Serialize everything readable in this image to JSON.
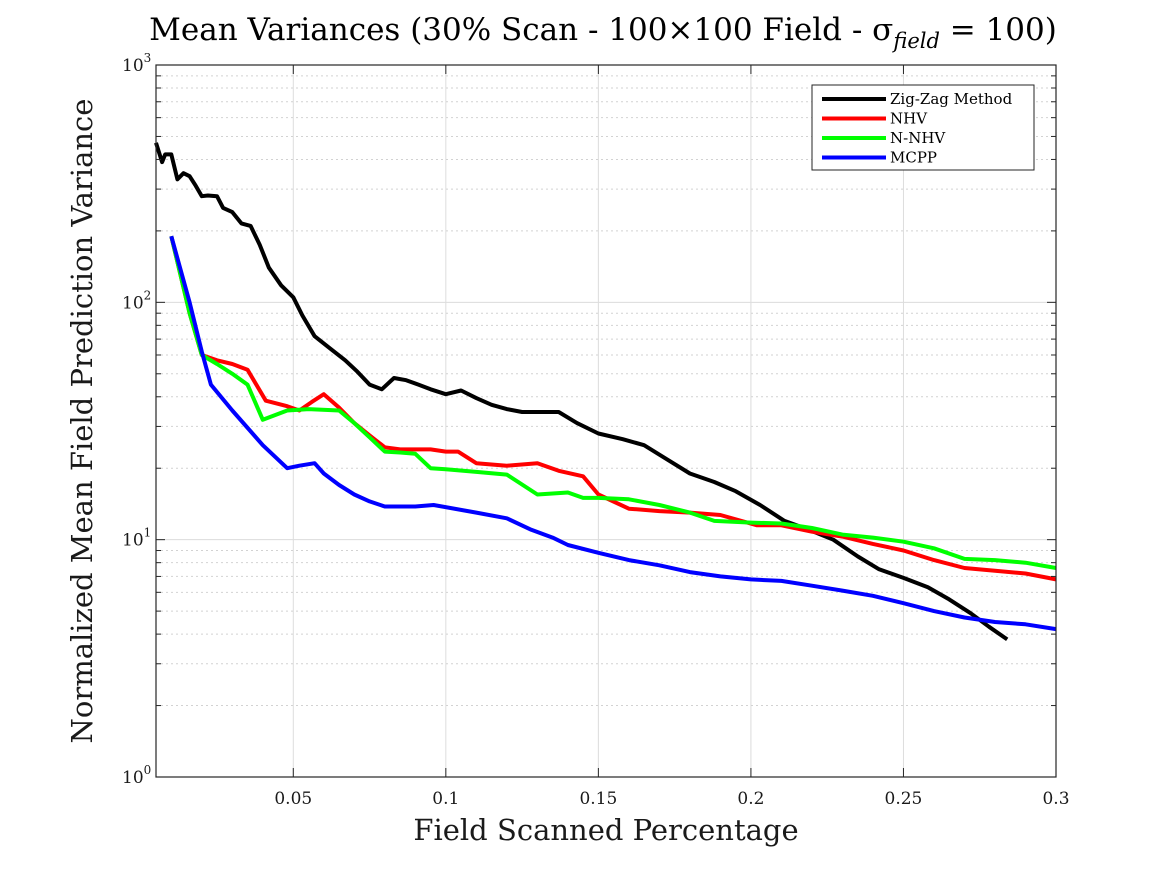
{
  "chart_data": {
    "type": "line",
    "title": "Mean Variances (30% Scan - 100×100 Field - σ",
    "title_sub": "field",
    "title_tail": " = 100)",
    "xlabel": "Field Scanned Percentage",
    "ylabel": "Normalized Mean Field Prediction Variance",
    "xlim": [
      0.005,
      0.3
    ],
    "ylim": [
      1,
      1000
    ],
    "yscale": "log",
    "grid": true,
    "legend_position": "top-right",
    "x_ticks": [
      {
        "value": 0.05,
        "label": "0.05"
      },
      {
        "value": 0.1,
        "label": "0.1"
      },
      {
        "value": 0.15,
        "label": "0.15"
      },
      {
        "value": 0.2,
        "label": "0.2"
      },
      {
        "value": 0.25,
        "label": "0.25"
      },
      {
        "value": 0.3,
        "label": "0.3"
      }
    ],
    "y_ticks": [
      {
        "value": 1,
        "base": "10",
        "exp": "0"
      },
      {
        "value": 10,
        "base": "10",
        "exp": "1"
      },
      {
        "value": 100,
        "base": "10",
        "exp": "2"
      },
      {
        "value": 1000,
        "base": "10",
        "exp": "3"
      }
    ],
    "series": [
      {
        "name": "Zig-Zag Method",
        "color": "#000000",
        "points": [
          [
            0.005,
            470
          ],
          [
            0.007,
            390
          ],
          [
            0.008,
            420
          ],
          [
            0.01,
            420
          ],
          [
            0.012,
            330
          ],
          [
            0.014,
            350
          ],
          [
            0.016,
            340
          ],
          [
            0.018,
            310
          ],
          [
            0.02,
            280
          ],
          [
            0.022,
            282
          ],
          [
            0.025,
            280
          ],
          [
            0.027,
            250
          ],
          [
            0.03,
            240
          ],
          [
            0.033,
            215
          ],
          [
            0.036,
            210
          ],
          [
            0.039,
            175
          ],
          [
            0.042,
            140
          ],
          [
            0.046,
            118
          ],
          [
            0.05,
            105
          ],
          [
            0.053,
            88
          ],
          [
            0.057,
            72
          ],
          [
            0.062,
            64
          ],
          [
            0.067,
            57
          ],
          [
            0.071,
            51
          ],
          [
            0.075,
            45
          ],
          [
            0.079,
            43
          ],
          [
            0.083,
            48
          ],
          [
            0.087,
            47
          ],
          [
            0.091,
            45
          ],
          [
            0.095,
            43
          ],
          [
            0.1,
            41
          ],
          [
            0.105,
            42.5
          ],
          [
            0.11,
            39.5
          ],
          [
            0.115,
            37
          ],
          [
            0.12,
            35.5
          ],
          [
            0.125,
            34.5
          ],
          [
            0.13,
            34.5
          ],
          [
            0.137,
            34.5
          ],
          [
            0.143,
            31
          ],
          [
            0.15,
            28
          ],
          [
            0.158,
            26.5
          ],
          [
            0.165,
            25
          ],
          [
            0.172,
            22
          ],
          [
            0.18,
            19
          ],
          [
            0.188,
            17.5
          ],
          [
            0.195,
            16
          ],
          [
            0.203,
            14
          ],
          [
            0.211,
            12
          ],
          [
            0.219,
            11
          ],
          [
            0.227,
            10
          ],
          [
            0.235,
            8.5
          ],
          [
            0.242,
            7.5
          ],
          [
            0.25,
            6.9
          ],
          [
            0.258,
            6.3
          ],
          [
            0.265,
            5.6
          ],
          [
            0.272,
            4.9
          ],
          [
            0.278,
            4.3
          ],
          [
            0.284,
            3.8
          ]
        ]
      },
      {
        "name": "NHV",
        "color": "#ff0000",
        "points": [
          [
            0.01,
            190
          ],
          [
            0.016,
            90
          ],
          [
            0.02,
            60
          ],
          [
            0.025,
            57
          ],
          [
            0.03,
            55
          ],
          [
            0.035,
            52
          ],
          [
            0.041,
            38.5
          ],
          [
            0.048,
            36.5
          ],
          [
            0.052,
            35
          ],
          [
            0.056,
            38
          ],
          [
            0.06,
            41
          ],
          [
            0.065,
            36
          ],
          [
            0.07,
            31
          ],
          [
            0.075,
            27.5
          ],
          [
            0.08,
            24.5
          ],
          [
            0.085,
            24
          ],
          [
            0.09,
            24
          ],
          [
            0.095,
            24
          ],
          [
            0.1,
            23.5
          ],
          [
            0.104,
            23.5
          ],
          [
            0.11,
            21
          ],
          [
            0.12,
            20.5
          ],
          [
            0.13,
            21
          ],
          [
            0.137,
            19.5
          ],
          [
            0.145,
            18.5
          ],
          [
            0.15,
            15.5
          ],
          [
            0.16,
            13.5
          ],
          [
            0.17,
            13.2
          ],
          [
            0.18,
            13
          ],
          [
            0.19,
            12.7
          ],
          [
            0.202,
            11.5
          ],
          [
            0.21,
            11.5
          ],
          [
            0.22,
            10.8
          ],
          [
            0.23,
            10.3
          ],
          [
            0.24,
            9.6
          ],
          [
            0.25,
            9
          ],
          [
            0.26,
            8.2
          ],
          [
            0.27,
            7.6
          ],
          [
            0.28,
            7.4
          ],
          [
            0.29,
            7.2
          ],
          [
            0.3,
            6.8
          ]
        ]
      },
      {
        "name": "N-NHV",
        "color": "#00ff00",
        "points": [
          [
            0.01,
            190
          ],
          [
            0.016,
            90
          ],
          [
            0.02,
            60
          ],
          [
            0.025,
            55
          ],
          [
            0.03,
            50
          ],
          [
            0.035,
            45
          ],
          [
            0.04,
            32
          ],
          [
            0.048,
            35
          ],
          [
            0.055,
            35.5
          ],
          [
            0.065,
            35
          ],
          [
            0.07,
            31
          ],
          [
            0.075,
            27
          ],
          [
            0.08,
            23.5
          ],
          [
            0.085,
            23.3
          ],
          [
            0.09,
            23
          ],
          [
            0.095,
            20
          ],
          [
            0.1,
            19.8
          ],
          [
            0.11,
            19.3
          ],
          [
            0.12,
            18.8
          ],
          [
            0.13,
            15.5
          ],
          [
            0.14,
            15.8
          ],
          [
            0.145,
            15
          ],
          [
            0.15,
            15
          ],
          [
            0.16,
            14.8
          ],
          [
            0.17,
            14
          ],
          [
            0.18,
            13
          ],
          [
            0.188,
            12
          ],
          [
            0.2,
            11.8
          ],
          [
            0.21,
            11.7
          ],
          [
            0.22,
            11.2
          ],
          [
            0.23,
            10.5
          ],
          [
            0.24,
            10.2
          ],
          [
            0.25,
            9.8
          ],
          [
            0.26,
            9.2
          ],
          [
            0.27,
            8.3
          ],
          [
            0.28,
            8.2
          ],
          [
            0.29,
            8
          ],
          [
            0.3,
            7.6
          ]
        ]
      },
      {
        "name": "MCPP",
        "color": "#0000ff",
        "points": [
          [
            0.01,
            190
          ],
          [
            0.016,
            100
          ],
          [
            0.02,
            62
          ],
          [
            0.023,
            45
          ],
          [
            0.03,
            35
          ],
          [
            0.04,
            25
          ],
          [
            0.048,
            20
          ],
          [
            0.052,
            20.5
          ],
          [
            0.057,
            21
          ],
          [
            0.06,
            19
          ],
          [
            0.065,
            17
          ],
          [
            0.07,
            15.5
          ],
          [
            0.075,
            14.5
          ],
          [
            0.08,
            13.8
          ],
          [
            0.09,
            13.8
          ],
          [
            0.096,
            14
          ],
          [
            0.11,
            13
          ],
          [
            0.12,
            12.3
          ],
          [
            0.128,
            11
          ],
          [
            0.135,
            10.2
          ],
          [
            0.14,
            9.5
          ],
          [
            0.15,
            8.8
          ],
          [
            0.16,
            8.2
          ],
          [
            0.17,
            7.8
          ],
          [
            0.18,
            7.3
          ],
          [
            0.19,
            7.0
          ],
          [
            0.2,
            6.8
          ],
          [
            0.21,
            6.7
          ],
          [
            0.22,
            6.4
          ],
          [
            0.23,
            6.1
          ],
          [
            0.24,
            5.8
          ],
          [
            0.25,
            5.4
          ],
          [
            0.26,
            5.0
          ],
          [
            0.27,
            4.7
          ],
          [
            0.28,
            4.5
          ],
          [
            0.29,
            4.4
          ],
          [
            0.3,
            4.2
          ]
        ]
      }
    ]
  }
}
